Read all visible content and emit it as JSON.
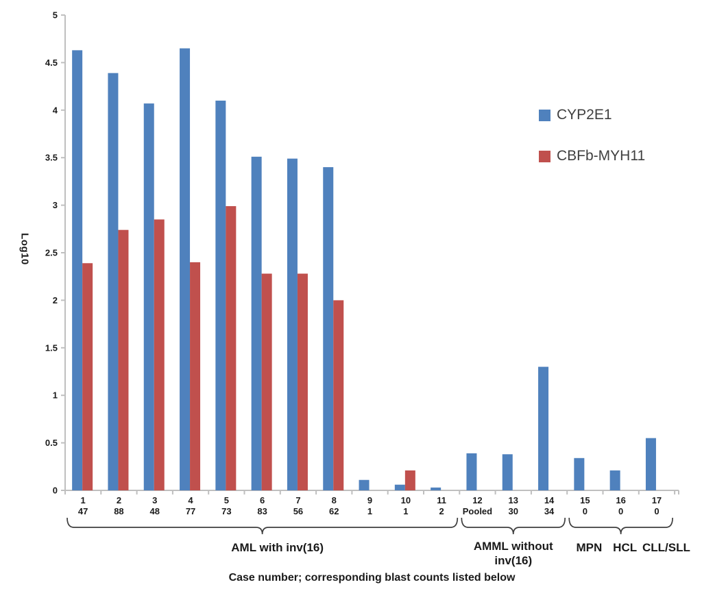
{
  "chart_data": {
    "type": "bar",
    "title": "",
    "ylabel": "Log10",
    "xlabel": "Case number; corresponding blast counts listed below",
    "ylim": [
      0,
      5
    ],
    "ytick_step": 0.5,
    "ytick_labels": [
      "5",
      "4.5",
      "4",
      "3.5",
      "3",
      "2.5",
      "2",
      "1.5",
      "1",
      "0.5",
      "0"
    ],
    "grid": false,
    "legend_position": "right",
    "axis_color": "#BFBFBF",
    "bracket_color": "#3F3F3F",
    "categories": [
      "1",
      "2",
      "3",
      "4",
      "5",
      "6",
      "7",
      "8",
      "9",
      "10",
      "11",
      "12",
      "13",
      "14",
      "15",
      "16",
      "17"
    ],
    "blast_counts": [
      "47",
      "88",
      "48",
      "77",
      "73",
      "83",
      "56",
      "62",
      "1",
      "1",
      "2",
      "Pooled",
      "30",
      "34",
      "0",
      "0",
      "0"
    ],
    "series": [
      {
        "name": "CYP2E1",
        "color": "#4F81BD",
        "values": [
          4.63,
          4.39,
          4.07,
          4.65,
          4.1,
          3.51,
          3.49,
          3.4,
          0.11,
          0.06,
          0.03,
          0.39,
          0.38,
          1.3,
          0.34,
          0.21,
          0.55
        ]
      },
      {
        "name": "CBFb-MYH11",
        "color": "#C0504D",
        "values": [
          2.39,
          2.74,
          2.85,
          2.4,
          2.99,
          2.28,
          2.28,
          2.0,
          null,
          0.21,
          null,
          null,
          null,
          null,
          null,
          null,
          null
        ]
      }
    ],
    "groups": [
      {
        "label": "AML with inv(16)",
        "bracket_span": [
          1,
          11
        ]
      },
      {
        "label": "AMML without inv(16)",
        "label_lines": [
          "AMML without",
          "inv(16)"
        ],
        "bracket_span": [
          12,
          14
        ]
      },
      {
        "label": "",
        "bracket_span": [
          15,
          17
        ],
        "sub_labels": [
          {
            "text": "MPN",
            "under_case": "15"
          },
          {
            "text": "HCL",
            "under_case": "16"
          },
          {
            "text": "CLL/SLL",
            "under_case": "17"
          }
        ]
      }
    ]
  }
}
